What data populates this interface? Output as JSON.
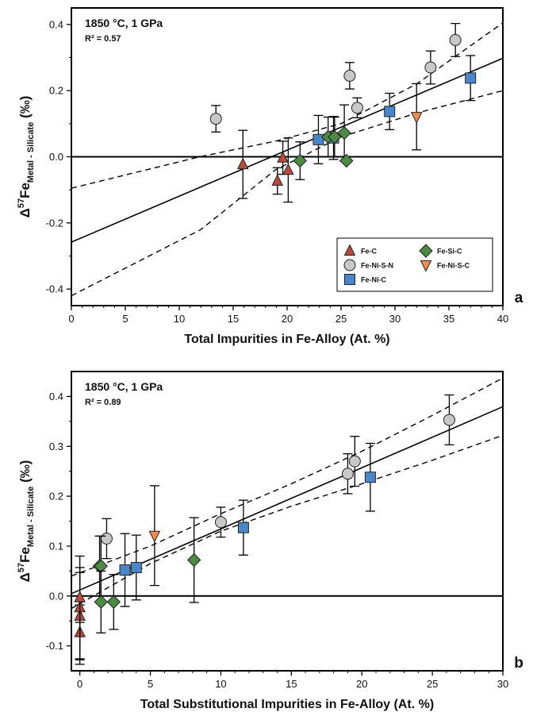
{
  "colors": {
    "Fe-C": "#b84a3e",
    "Fe-Ni-S-N": "#c8c8c8",
    "Fe-Ni-C": "#4a86c8",
    "Fe-Si-C": "#4d8a44",
    "Fe-Ni-S-C": "#ef8c52"
  },
  "legend_order": [
    "Fe-C",
    "Fe-Si-C",
    "Fe-Ni-S-N",
    "Fe-Ni-S-C",
    "Fe-Ni-C"
  ],
  "chart_data": [
    {
      "panel_letter": "a",
      "type": "scatter",
      "title": "1850 °C, 1 GPa",
      "r2": "R² = 0.57",
      "xlabel": "Total Impurities in Fe-Alloy (At. %)",
      "ylabel": {
        "main": "Δ",
        "sup": "57",
        "fe": "Fe",
        "sub": "Metal - Silicate",
        "unit": " (‰)"
      },
      "xlim": [
        0,
        40
      ],
      "ylim": [
        -0.45,
        0.45
      ],
      "xticks": [
        0,
        5,
        10,
        15,
        20,
        25,
        30,
        35,
        40
      ],
      "yticks": [
        -0.4,
        -0.2,
        0.0,
        0.2,
        0.4
      ],
      "ytick_labels": [
        "-0.4",
        "-0.2",
        "0.0",
        "0.2",
        "0.4"
      ],
      "regression": {
        "intercept": -0.258,
        "slope": 0.0139
      },
      "confidence_upper": [
        [
          0,
          -0.095
        ],
        [
          11.9,
          0.0
        ],
        [
          18.9,
          0.047
        ],
        [
          25,
          0.1
        ],
        [
          32,
          0.22
        ],
        [
          40,
          0.405
        ]
      ],
      "confidence_lower": [
        [
          0,
          -0.42
        ],
        [
          12,
          -0.22
        ],
        [
          18.9,
          -0.04
        ],
        [
          25,
          0.06
        ],
        [
          32,
          0.132
        ],
        [
          40,
          0.2
        ]
      ],
      "legend": true,
      "series": [
        {
          "name": "Fe-C",
          "points": [
            {
              "x": 15.9,
              "y": -0.023,
              "err": 0.103
            },
            {
              "x": 19.1,
              "y": -0.073,
              "err": 0.04
            },
            {
              "x": 19.6,
              "y": -0.003,
              "err": 0.05
            },
            {
              "x": 20.1,
              "y": -0.04,
              "err": 0.097
            }
          ]
        },
        {
          "name": "Fe-Ni-S-N",
          "points": [
            {
              "x": 13.4,
              "y": 0.115,
              "err": 0.04
            },
            {
              "x": 25.8,
              "y": 0.245,
              "err": 0.04
            },
            {
              "x": 26.5,
              "y": 0.148,
              "err": 0.03
            },
            {
              "x": 33.3,
              "y": 0.27,
              "err": 0.05
            },
            {
              "x": 35.6,
              "y": 0.353,
              "err": 0.05
            }
          ]
        },
        {
          "name": "Fe-Ni-C",
          "points": [
            {
              "x": 22.9,
              "y": 0.052,
              "err": 0.073
            },
            {
              "x": 24.3,
              "y": 0.057,
              "err": 0.065
            },
            {
              "x": 29.5,
              "y": 0.137,
              "err": 0.055
            },
            {
              "x": 37.0,
              "y": 0.238,
              "err": 0.068
            }
          ]
        },
        {
          "name": "Fe-Si-C",
          "points": [
            {
              "x": 21.2,
              "y": -0.012,
              "err": 0.057
            },
            {
              "x": 23.8,
              "y": 0.06,
              "err": 0.06
            },
            {
              "x": 24.4,
              "y": 0.06,
              "err": 0.06
            },
            {
              "x": 25.3,
              "y": 0.072,
              "err": 0.085
            },
            {
              "x": 25.5,
              "y": -0.012,
              "err": 0.0
            }
          ]
        },
        {
          "name": "Fe-Ni-S-C",
          "points": [
            {
              "x": 32.0,
              "y": 0.121,
              "err": 0.1
            }
          ]
        }
      ]
    },
    {
      "panel_letter": "b",
      "type": "scatter",
      "title": "1850 °C, 1 GPa",
      "r2": "R² = 0.89",
      "xlabel": "Total Substitutional Impurities in Fe-Alloy (At. %)",
      "ylabel": {
        "main": "Δ",
        "sup": "57",
        "fe": "Fe",
        "sub": "Metal - Silicate",
        "unit": " (‰)"
      },
      "xlim": [
        -0.6,
        30
      ],
      "ylim": [
        -0.15,
        0.45
      ],
      "xticks": [
        0,
        5,
        10,
        15,
        20,
        25,
        30
      ],
      "yticks": [
        -0.1,
        0.0,
        0.1,
        0.2,
        0.3,
        0.4
      ],
      "ytick_labels": [
        "-0.1",
        "0.0",
        "0.1",
        "0.2",
        "0.3",
        "0.4"
      ],
      "regression": {
        "intercept": 0.012,
        "slope": 0.01225
      },
      "confidence_upper": [
        [
          -0.6,
          0.04
        ],
        [
          5,
          0.1
        ],
        [
          10,
          0.165
        ],
        [
          15,
          0.225
        ],
        [
          20,
          0.29
        ],
        [
          25,
          0.362
        ],
        [
          30,
          0.437
        ]
      ],
      "confidence_lower": [
        [
          -0.6,
          -0.025
        ],
        [
          5,
          0.065
        ],
        [
          10,
          0.13
        ],
        [
          15,
          0.18
        ],
        [
          20,
          0.225
        ],
        [
          25,
          0.272
        ],
        [
          30,
          0.322
        ]
      ],
      "legend": false,
      "series": [
        {
          "name": "Fe-C",
          "points": [
            {
              "x": 0.0,
              "y": -0.073,
              "err": 0.055
            },
            {
              "x": 0.0,
              "y": -0.04,
              "err": 0.097
            },
            {
              "x": 0.0,
              "y": -0.023,
              "err": 0.103
            },
            {
              "x": 0.0,
              "y": -0.003,
              "err": 0.05
            }
          ]
        },
        {
          "name": "Fe-Ni-S-N",
          "points": [
            {
              "x": 1.9,
              "y": 0.115,
              "err": 0.04
            },
            {
              "x": 10.0,
              "y": 0.148,
              "err": 0.03
            },
            {
              "x": 19.0,
              "y": 0.245,
              "err": 0.04
            },
            {
              "x": 19.5,
              "y": 0.27,
              "err": 0.05
            },
            {
              "x": 26.2,
              "y": 0.353,
              "err": 0.05
            }
          ]
        },
        {
          "name": "Fe-Ni-C",
          "points": [
            {
              "x": 3.2,
              "y": 0.052,
              "err": 0.073
            },
            {
              "x": 4.0,
              "y": 0.057,
              "err": 0.065
            },
            {
              "x": 11.6,
              "y": 0.137,
              "err": 0.055
            },
            {
              "x": 20.6,
              "y": 0.238,
              "err": 0.068
            }
          ]
        },
        {
          "name": "Fe-Si-C",
          "points": [
            {
              "x": 1.4,
              "y": 0.06,
              "err": 0.06
            },
            {
              "x": 1.5,
              "y": 0.06,
              "err": 0.06
            },
            {
              "x": 1.5,
              "y": -0.012,
              "err": 0.062
            },
            {
              "x": 2.4,
              "y": -0.012,
              "err": 0.055
            },
            {
              "x": 8.1,
              "y": 0.072,
              "err": 0.085
            }
          ]
        },
        {
          "name": "Fe-Ni-S-C",
          "points": [
            {
              "x": 5.3,
              "y": 0.121,
              "err": 0.1
            }
          ]
        }
      ]
    }
  ]
}
